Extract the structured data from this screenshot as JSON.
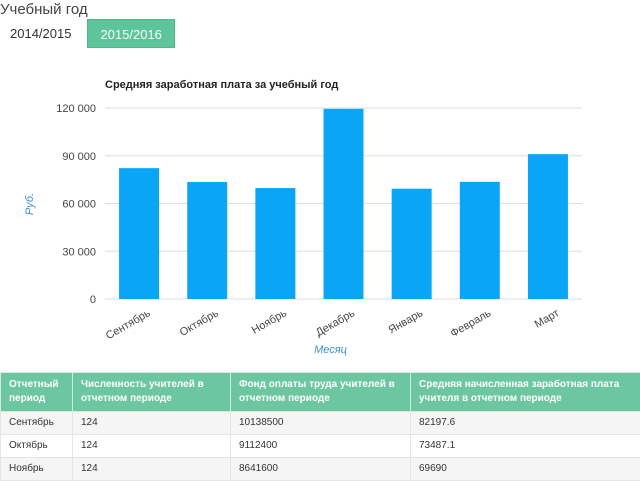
{
  "page": {
    "title": "Учебный год"
  },
  "year_tabs": [
    {
      "label": "2014/2015",
      "active": false
    },
    {
      "label": "2015/2016",
      "active": true
    }
  ],
  "colors": {
    "accent": "#5cc59a",
    "bar": "#0aa5f5",
    "table_header": "#6cc7a0",
    "axis_title": "#3b8fd6"
  },
  "chart_data": {
    "type": "bar",
    "title": "Средняя заработная плата за учебный год",
    "xlabel": "Месяц",
    "ylabel": "Руб.",
    "categories": [
      "Сентябрь",
      "Октябрь",
      "Ноябрь",
      "Декабрь",
      "Январь",
      "Февраль",
      "Март"
    ],
    "values": [
      82197.6,
      73487.1,
      69690,
      119500,
      69300,
      73600,
      91000
    ],
    "ylim": [
      0,
      120000
    ],
    "yticks": [
      0,
      30000,
      60000,
      90000,
      120000
    ],
    "ytick_labels": [
      "0",
      "30 000",
      "60 000",
      "90 000",
      "120 000"
    ],
    "grid": true,
    "legend": "none"
  },
  "table": {
    "columns": [
      "Отчетный период",
      "Численность учителей в отчетном периоде",
      "Фонд оплаты труда учителей в отчетном периоде",
      "Средняя начисленная заработная плата учителя в отчетном периоде"
    ],
    "rows": [
      [
        "Сентябрь",
        "124",
        "10138500",
        "82197.6"
      ],
      [
        "Октябрь",
        "124",
        "9112400",
        "73487.1"
      ],
      [
        "Ноябрь",
        "124",
        "8641600",
        "69690"
      ]
    ]
  }
}
